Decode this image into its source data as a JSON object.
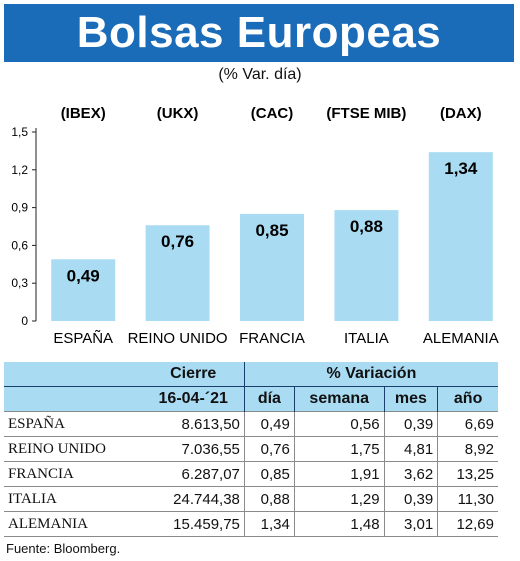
{
  "header": {
    "title": "Bolsas Europeas",
    "subtitle": "(% Var. día)"
  },
  "chart_data": {
    "type": "bar",
    "categories": [
      "ESPAÑA",
      "REINO UNIDO",
      "FRANCIA",
      "ITALIA",
      "ALEMANIA"
    ],
    "index_labels": [
      "(IBEX)",
      "(UKX)",
      "(CAC)",
      "(FTSE MIB)",
      "(DAX)"
    ],
    "values": [
      0.49,
      0.76,
      0.85,
      0.88,
      1.34
    ],
    "value_labels": [
      "0,49",
      "0,76",
      "0,85",
      "0,88",
      "1,34"
    ],
    "yticks": [
      0,
      0.3,
      0.6,
      0.9,
      1.2,
      1.5
    ],
    "ytick_labels": [
      "0",
      "0,3",
      "0,6",
      "0,9",
      "1,2",
      "1,5"
    ],
    "ylim": [
      0,
      1.5
    ],
    "grid": false,
    "bar_color": "#a9dcf3"
  },
  "table": {
    "group_headers": {
      "cierre": "Cierre",
      "variacion": "% Variación"
    },
    "columns": [
      "16-04-´21",
      "día",
      "semana",
      "mes",
      "año"
    ],
    "rows": [
      {
        "name": "ESPAÑA",
        "cierre": "8.613,50",
        "dia": "0,49",
        "semana": "0,56",
        "mes": "0,39",
        "anio": "6,69"
      },
      {
        "name": "REINO UNIDO",
        "cierre": "7.036,55",
        "dia": "0,76",
        "semana": "1,75",
        "mes": "4,81",
        "anio": "8,92"
      },
      {
        "name": "FRANCIA",
        "cierre": "6.287,07",
        "dia": "0,85",
        "semana": "1,91",
        "mes": "3,62",
        "anio": "13,25"
      },
      {
        "name": "ITALIA",
        "cierre": "24.744,38",
        "dia": "0,88",
        "semana": "1,29",
        "mes": "0,39",
        "anio": "11,30"
      },
      {
        "name": "ALEMANIA",
        "cierre": "15.459,75",
        "dia": "1,34",
        "semana": "1,48",
        "mes": "3,01",
        "anio": "12,69"
      }
    ]
  },
  "source": "Fuente: Bloomberg."
}
